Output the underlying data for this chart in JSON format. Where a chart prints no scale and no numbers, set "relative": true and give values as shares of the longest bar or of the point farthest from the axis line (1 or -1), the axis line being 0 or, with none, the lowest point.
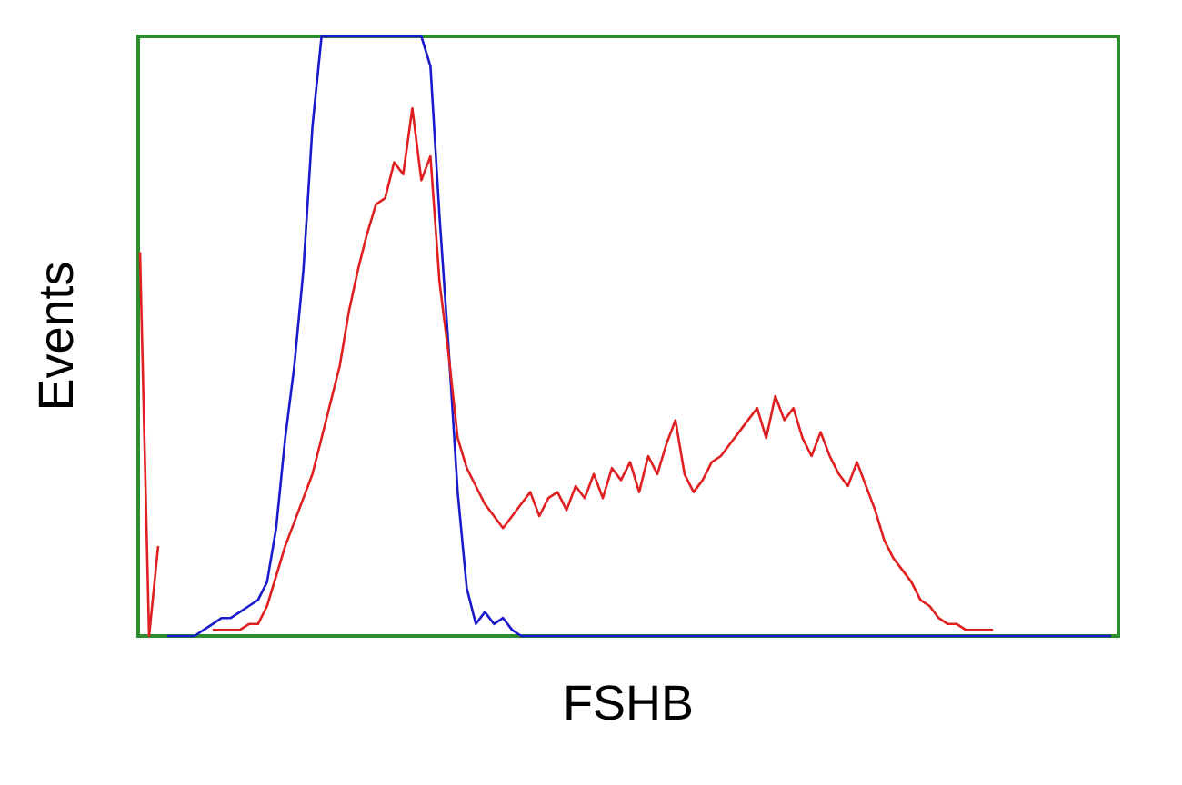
{
  "chart_data": {
    "type": "line",
    "relative": true,
    "xlabel": "FSHB",
    "ylabel": "Events",
    "marker": "none",
    "categories": [
      null,
      null,
      null,
      null,
      null,
      null,
      null,
      null,
      null,
      null,
      null,
      null,
      null,
      null,
      null,
      null,
      null,
      null,
      null,
      null,
      null,
      null,
      null,
      null,
      null,
      null,
      null,
      null,
      null,
      null,
      null,
      null,
      null,
      null,
      null,
      null,
      null,
      null,
      null,
      null,
      null,
      null,
      null,
      null,
      null,
      null,
      null,
      null,
      null,
      null,
      null,
      null,
      null,
      null,
      null,
      null,
      null,
      null,
      null,
      null,
      null,
      null,
      null,
      null,
      null,
      null,
      null,
      null,
      null,
      null,
      null,
      null,
      null,
      null,
      null,
      null,
      null,
      null,
      null,
      null,
      null,
      null,
      null,
      null,
      null,
      null,
      null,
      null,
      null,
      null,
      null,
      null,
      null,
      null,
      null,
      null,
      null,
      null,
      null,
      null,
      null,
      null,
      null,
      null,
      null,
      null,
      null,
      null
    ],
    "series": [
      {
        "color": "#1a1acc",
        "values": [
          null,
          null,
          null,
          0,
          0,
          0,
          0,
          0.01,
          0.02,
          0.03,
          0.03,
          0.04,
          0.05,
          0.06,
          0.09,
          0.18,
          0.33,
          0.45,
          0.61,
          0.85,
          1,
          1,
          1,
          1,
          1,
          1,
          1,
          1,
          1,
          1,
          1,
          1,
          0.95,
          0.7,
          0.48,
          0.24,
          0.08,
          0.02,
          0.04,
          0.02,
          0.03,
          0.01,
          0,
          0,
          0,
          0,
          0,
          0,
          0,
          0,
          0,
          0,
          0,
          0,
          0,
          0,
          0,
          0,
          0,
          0,
          0,
          0,
          0,
          0,
          0,
          0,
          0,
          0,
          0,
          0,
          0,
          0,
          0,
          0,
          0,
          0,
          0,
          0,
          0,
          0,
          0,
          0,
          0,
          0,
          0,
          0,
          0,
          0,
          0,
          0,
          0,
          0,
          0,
          0,
          0,
          0,
          0,
          0,
          0,
          0,
          0,
          0,
          0,
          0,
          0,
          0,
          0,
          0
        ]
      },
      {
        "color": "#e02020",
        "values": [
          0.64,
          0,
          0.15,
          null,
          null,
          null,
          null,
          null,
          0.01,
          0.01,
          0.01,
          0.01,
          0.02,
          0.02,
          0.05,
          0.1,
          0.15,
          0.19,
          0.23,
          0.27,
          0.33,
          0.39,
          0.45,
          0.54,
          0.61,
          0.67,
          0.72,
          0.73,
          0.79,
          0.77,
          0.88,
          0.76,
          0.8,
          0.59,
          0.47,
          0.33,
          0.28,
          0.25,
          0.22,
          0.2,
          0.18,
          0.2,
          0.22,
          0.24,
          0.2,
          0.23,
          0.24,
          0.21,
          0.25,
          0.23,
          0.27,
          0.23,
          0.28,
          0.26,
          0.29,
          0.24,
          0.3,
          0.27,
          0.32,
          0.36,
          0.27,
          0.24,
          0.26,
          0.29,
          0.3,
          0.32,
          0.34,
          0.36,
          0.38,
          0.33,
          0.4,
          0.36,
          0.38,
          0.33,
          0.3,
          0.34,
          0.3,
          0.27,
          0.25,
          0.29,
          0.25,
          0.21,
          0.16,
          0.13,
          0.11,
          0.09,
          0.06,
          0.05,
          0.03,
          0.02,
          0.02,
          0.01,
          0.01,
          0.01,
          0.01,
          null,
          null,
          null,
          null,
          null,
          null,
          null,
          null,
          null,
          null,
          null,
          null,
          null
        ]
      }
    ]
  }
}
